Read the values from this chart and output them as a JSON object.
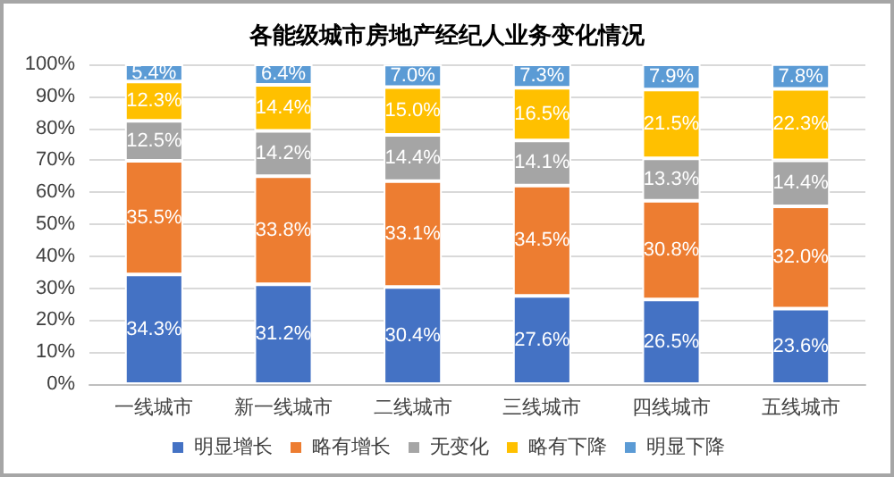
{
  "chart_data": {
    "type": "bar",
    "title": "各能级城市房地产经纪人业务变化情况",
    "categories": [
      "一线城市",
      "新一线城市",
      "二线城市",
      "三线城市",
      "四线城市",
      "五线城市"
    ],
    "stacked": true,
    "ylim": [
      0,
      100
    ],
    "yticks": [
      {
        "value": 0,
        "label": "0%"
      },
      {
        "value": 10,
        "label": "10%"
      },
      {
        "value": 20,
        "label": "20%"
      },
      {
        "value": 30,
        "label": "30%"
      },
      {
        "value": 40,
        "label": "40%"
      },
      {
        "value": 50,
        "label": "50%"
      },
      {
        "value": 60,
        "label": "60%"
      },
      {
        "value": 70,
        "label": "70%"
      },
      {
        "value": 80,
        "label": "80%"
      },
      {
        "value": 90,
        "label": "90%"
      },
      {
        "value": 100,
        "label": "100%"
      }
    ],
    "grid": "y",
    "legend": "bottom",
    "series": [
      {
        "name": "明显增长",
        "color": "#4472c4",
        "values": [
          34.3,
          31.2,
          30.4,
          27.6,
          26.5,
          23.6
        ],
        "value_labels": [
          "34.3%",
          "31.2%",
          "30.4%",
          "27.6%",
          "26.5%",
          "23.6%"
        ]
      },
      {
        "name": "略有增长",
        "color": "#ed7d31",
        "values": [
          35.5,
          33.8,
          33.1,
          34.5,
          30.8,
          32.0
        ],
        "value_labels": [
          "35.5%",
          "33.8%",
          "33.1%",
          "34.5%",
          "30.8%",
          "32.0%"
        ]
      },
      {
        "name": "无变化",
        "color": "#a5a5a5",
        "values": [
          12.5,
          14.2,
          14.4,
          14.1,
          13.3,
          14.4
        ],
        "value_labels": [
          "12.5%",
          "14.2%",
          "14.4%",
          "14.1%",
          "13.3%",
          "14.4%"
        ]
      },
      {
        "name": "略有下降",
        "color": "#ffc000",
        "values": [
          12.3,
          14.4,
          15.0,
          16.5,
          21.5,
          22.3
        ],
        "value_labels": [
          "12.3%",
          "14.4%",
          "15.0%",
          "16.5%",
          "21.5%",
          "22.3%"
        ]
      },
      {
        "name": "明显下降",
        "color": "#5b9bd5",
        "values": [
          5.4,
          6.4,
          7.0,
          7.3,
          7.9,
          7.8
        ],
        "value_labels": [
          "5.4%",
          "6.4%",
          "7.0%",
          "7.3%",
          "7.9%",
          "7.8%"
        ]
      }
    ]
  }
}
